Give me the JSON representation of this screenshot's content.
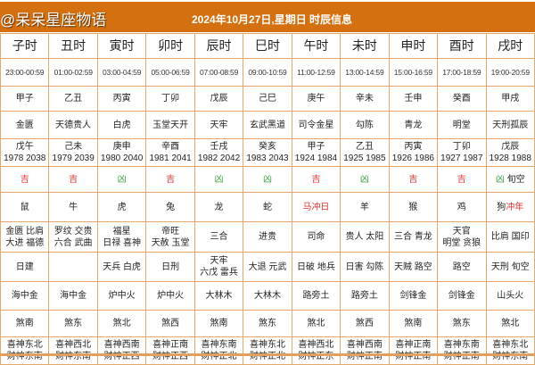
{
  "header": {
    "brand": "@呆呆星座物语",
    "title": "2024年10月27日,星期日 时辰信息"
  },
  "colors": {
    "accent": "#d4700f",
    "ji": "#e03030",
    "xiong": "#3aa040"
  },
  "columns": [
    {
      "name": "子时",
      "time": "23:00-00:59",
      "gz": "甲子",
      "shen": "金匮",
      "chong_gz": "戊午",
      "chong_years": "1978 2038",
      "luck": "吉",
      "luck_extra": "",
      "zodiac": "鼠",
      "zodiac_chong": "",
      "good": [
        "金匮 比肩",
        "大进 福德"
      ],
      "bad": [
        "日建"
      ],
      "nayin": "海中金",
      "sha": "煞南",
      "xi": "喜神东北",
      "cai": "财神东南"
    },
    {
      "name": "丑时",
      "time": "01:00-02:59",
      "gz": "乙丑",
      "shen": "天德贵人",
      "chong_gz": "己未",
      "chong_years": "1979 2039",
      "luck": "吉",
      "luck_extra": "",
      "zodiac": "牛",
      "zodiac_chong": "",
      "good": [
        "罗纹 交贵",
        "六合 武曲"
      ],
      "bad": [],
      "nayin": "海中金",
      "sha": "煞东",
      "xi": "喜神西北",
      "cai": "财神东南"
    },
    {
      "name": "寅时",
      "time": "03:00-04:59",
      "gz": "丙寅",
      "shen": "白虎",
      "chong_gz": "庚申",
      "chong_years": "1980 2040",
      "luck": "凶",
      "luck_extra": "",
      "zodiac": "虎",
      "zodiac_chong": "",
      "good": [
        "福星",
        "日禄 喜神"
      ],
      "bad": [
        "天兵 白虎"
      ],
      "nayin": "炉中火",
      "sha": "煞北",
      "xi": "喜神西南",
      "cai": "财神正西"
    },
    {
      "name": "卯时",
      "time": "05:00-06:59",
      "gz": "丁卯",
      "shen": "玉堂天开",
      "chong_gz": "辛酉",
      "chong_years": "1981 2041",
      "luck": "吉",
      "luck_extra": "",
      "zodiac": "兔",
      "zodiac_chong": "",
      "good": [
        "帝旺",
        "天赦 玉堂"
      ],
      "bad": [
        "日刑"
      ],
      "nayin": "炉中火",
      "sha": "煞西",
      "xi": "喜神正南",
      "cai": "财神正西"
    },
    {
      "name": "辰时",
      "time": "07:00-08:59",
      "gz": "戊辰",
      "shen": "天牢",
      "chong_gz": "壬戌",
      "chong_years": "1982 2042",
      "luck": "凶",
      "luck_extra": "",
      "zodiac": "龙",
      "zodiac_chong": "",
      "good": [
        "三合"
      ],
      "bad": [
        "天牢",
        "六戊 雷兵"
      ],
      "nayin": "大林木",
      "sha": "煞南",
      "xi": "喜神东南",
      "cai": "财神正北"
    },
    {
      "name": "巳时",
      "time": "09:00-10:59",
      "gz": "己巳",
      "shen": "玄武黑道",
      "chong_gz": "癸亥",
      "chong_years": "1983 2043",
      "luck": "凶",
      "luck_extra": "",
      "zodiac": "蛇",
      "zodiac_chong": "",
      "good": [
        "进贵"
      ],
      "bad": [
        "大退 元武"
      ],
      "nayin": "大林木",
      "sha": "煞东",
      "xi": "喜神东北",
      "cai": "财神正北"
    },
    {
      "name": "午时",
      "time": "11:00-12:59",
      "gz": "庚午",
      "shen": "司令金星",
      "chong_gz": "甲子",
      "chong_years": "1924 1984",
      "luck": "吉",
      "luck_extra": "",
      "zodiac": "马",
      "zodiac_chong": "冲日",
      "good": [
        "司命"
      ],
      "bad": [
        "日破 地兵"
      ],
      "nayin": "路旁土",
      "sha": "煞北",
      "xi": "喜神西北",
      "cai": "财神正东"
    },
    {
      "name": "未时",
      "time": "13:00-14:59",
      "gz": "辛未",
      "shen": "勾陈",
      "chong_gz": "乙丑",
      "chong_years": "1925 1985",
      "luck": "凶",
      "luck_extra": "",
      "zodiac": "羊",
      "zodiac_chong": "",
      "good": [
        "贵人 太阳"
      ],
      "bad": [
        "日害 勾陈"
      ],
      "nayin": "路旁土",
      "sha": "煞西",
      "xi": "喜神西南",
      "cai": "财神正南"
    },
    {
      "name": "申时",
      "time": "15:00-16:59",
      "gz": "壬申",
      "shen": "青龙",
      "chong_gz": "丙寅",
      "chong_years": "1926 1986",
      "luck": "吉",
      "luck_extra": "",
      "zodiac": "猴",
      "zodiac_chong": "",
      "good": [
        "三合 青龙"
      ],
      "bad": [
        "天贼 路空"
      ],
      "nayin": "剑锋金",
      "sha": "煞南",
      "xi": "喜神正南",
      "cai": "财神正南"
    },
    {
      "name": "酉时",
      "time": "17:00-18:59",
      "gz": "癸酉",
      "shen": "明堂",
      "chong_gz": "丁卯",
      "chong_years": "1927 1987",
      "luck": "吉",
      "luck_extra": "",
      "zodiac": "鸡",
      "zodiac_chong": "",
      "good": [
        "天官",
        "明堂 贪狼"
      ],
      "bad": [
        "路空"
      ],
      "nayin": "剑锋金",
      "sha": "煞东",
      "xi": "喜神东南",
      "cai": "财神正南"
    },
    {
      "name": "戌时",
      "time": "19:00-20:59",
      "gz": "甲戌",
      "shen": "天刑孤辰",
      "chong_gz": "戊辰",
      "chong_years": "1928 1988",
      "luck": "凶",
      "luck_extra": "旬空",
      "zodiac": "狗",
      "zodiac_chong": "冲年",
      "good": [
        "比肩 国印"
      ],
      "bad": [
        "天刑 旬空"
      ],
      "nayin": "山头火",
      "sha": "煞北",
      "xi": "喜神东北",
      "cai": "财神东南"
    }
  ]
}
